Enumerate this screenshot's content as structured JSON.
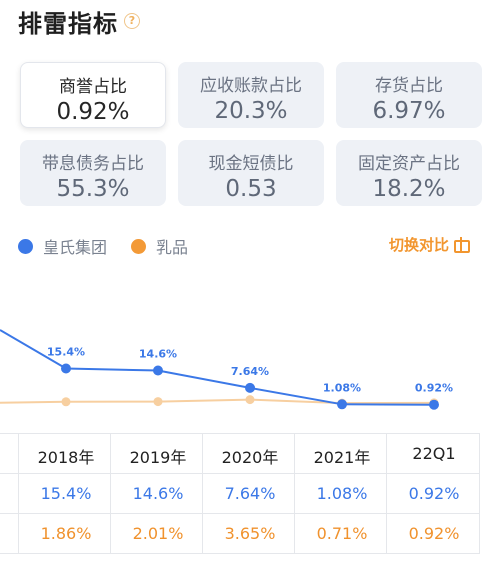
{
  "header": {
    "title": "排雷指标",
    "help_icon": "question-icon"
  },
  "metrics": [
    {
      "label": "商誉占比",
      "value": "0.92%",
      "active": true
    },
    {
      "label": "应收账款占比",
      "value": "20.3%"
    },
    {
      "label": "存货占比",
      "value": "6.97%"
    },
    {
      "label": "带息债务占比",
      "value": "55.3%"
    },
    {
      "label": "现金短债比",
      "value": "0.53"
    },
    {
      "label": "固定资产占比",
      "value": "18.2%"
    }
  ],
  "legend": [
    {
      "name": "皇氏集团",
      "color": "#3b78e7"
    },
    {
      "name": "乳品",
      "color": "#f39a37"
    }
  ],
  "switch_label": "切换对比",
  "colors": {
    "company": "#3b78e7",
    "industry": "#f39a37",
    "industry_line": "#f7cfa0"
  },
  "chart_data": {
    "type": "line",
    "categories": [
      "2018年",
      "2019年",
      "2020年",
      "2021年",
      "22Q1"
    ],
    "series": [
      {
        "name": "皇氏集团",
        "values": [
          15.4,
          14.6,
          7.64,
          1.08,
          0.92
        ],
        "labels": [
          "15.4%",
          "14.6%",
          "7.64%",
          "1.08%",
          "0.92%"
        ]
      },
      {
        "name": "乳品",
        "values": [
          1.86,
          2.01,
          3.65,
          0.71,
          0.92
        ]
      }
    ]
  },
  "table": {
    "headers": [
      "2018年",
      "2019年",
      "2020年",
      "2021年",
      "22Q1"
    ],
    "company_row": [
      "15.4%",
      "14.6%",
      "7.64%",
      "1.08%",
      "0.92%"
    ],
    "industry_row": [
      "1.86%",
      "2.01%",
      "3.65%",
      "0.71%",
      "0.92%"
    ]
  }
}
